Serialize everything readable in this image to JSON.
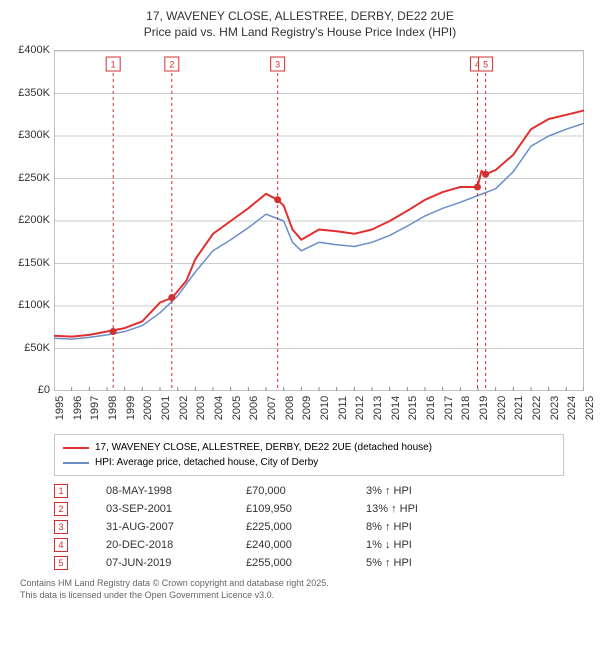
{
  "title_line1": "17, WAVENEY CLOSE, ALLESTREE, DERBY, DE22 2UE",
  "title_line2": "Price paid vs. HM Land Registry's House Price Index (HPI)",
  "chart": {
    "type": "line",
    "background_color": "#ffffff",
    "plot_border_color": "#bbbbbb",
    "grid_color": "#cccccc",
    "x": {
      "min": 1995,
      "max": 2025,
      "step": 1,
      "labels": [
        "1995",
        "1996",
        "1997",
        "1998",
        "1999",
        "2000",
        "2001",
        "2002",
        "2003",
        "2004",
        "2005",
        "2006",
        "2007",
        "2008",
        "2009",
        "2010",
        "2011",
        "2012",
        "2013",
        "2014",
        "2015",
        "2016",
        "2017",
        "2018",
        "2019",
        "2020",
        "2021",
        "2022",
        "2023",
        "2024",
        "2025"
      ],
      "label_fontsize": 11,
      "label_rotation": -90
    },
    "y": {
      "min": 0,
      "max": 400000,
      "step": 50000,
      "labels": [
        "£0",
        "£50K",
        "£100K",
        "£150K",
        "£200K",
        "£250K",
        "£300K",
        "£350K",
        "£400K"
      ],
      "label_fontsize": 11
    },
    "series": [
      {
        "name": "17, WAVENEY CLOSE, ALLESTREE, DERBY, DE22 2UE (detached house)",
        "color": "#e03030",
        "line_width": 2,
        "data": [
          [
            1995,
            65000
          ],
          [
            1996,
            64000
          ],
          [
            1997,
            66000
          ],
          [
            1998,
            70000
          ],
          [
            1999,
            74000
          ],
          [
            2000,
            82000
          ],
          [
            2001,
            104000
          ],
          [
            2001.7,
            109950
          ],
          [
            2002.5,
            130000
          ],
          [
            2003,
            155000
          ],
          [
            2004,
            185000
          ],
          [
            2005,
            200000
          ],
          [
            2006,
            215000
          ],
          [
            2007,
            232000
          ],
          [
            2007.66,
            225000
          ],
          [
            2008,
            218000
          ],
          [
            2008.5,
            190000
          ],
          [
            2009,
            178000
          ],
          [
            2010,
            190000
          ],
          [
            2011,
            188000
          ],
          [
            2012,
            185000
          ],
          [
            2013,
            190000
          ],
          [
            2014,
            200000
          ],
          [
            2015,
            212000
          ],
          [
            2016,
            225000
          ],
          [
            2017,
            234000
          ],
          [
            2018,
            240000
          ],
          [
            2018.97,
            240000
          ],
          [
            2019.2,
            259000
          ],
          [
            2019.43,
            255000
          ],
          [
            2020,
            260000
          ],
          [
            2021,
            278000
          ],
          [
            2022,
            308000
          ],
          [
            2023,
            320000
          ],
          [
            2024,
            325000
          ],
          [
            2025,
            330000
          ]
        ]
      },
      {
        "name": "HPI: Average price, detached house, City of Derby",
        "color": "#6a8fc8",
        "line_width": 1.5,
        "data": [
          [
            1995,
            62000
          ],
          [
            1996,
            61000
          ],
          [
            1997,
            63000
          ],
          [
            1998,
            66000
          ],
          [
            1999,
            70000
          ],
          [
            2000,
            77000
          ],
          [
            2001,
            92000
          ],
          [
            2002,
            112000
          ],
          [
            2003,
            140000
          ],
          [
            2004,
            165000
          ],
          [
            2005,
            178000
          ],
          [
            2006,
            192000
          ],
          [
            2007,
            208000
          ],
          [
            2008,
            200000
          ],
          [
            2008.5,
            175000
          ],
          [
            2009,
            165000
          ],
          [
            2010,
            175000
          ],
          [
            2011,
            172000
          ],
          [
            2012,
            170000
          ],
          [
            2013,
            175000
          ],
          [
            2014,
            183000
          ],
          [
            2015,
            194000
          ],
          [
            2016,
            206000
          ],
          [
            2017,
            215000
          ],
          [
            2018,
            222000
          ],
          [
            2019,
            230000
          ],
          [
            2020,
            238000
          ],
          [
            2021,
            258000
          ],
          [
            2022,
            288000
          ],
          [
            2023,
            300000
          ],
          [
            2024,
            308000
          ],
          [
            2025,
            315000
          ]
        ]
      }
    ],
    "markers": {
      "color": "#d03030",
      "box_fontsize": 9,
      "line_dash": "3,3",
      "items": [
        {
          "n": "1",
          "x": 1998.35,
          "y": 70000
        },
        {
          "n": "2",
          "x": 2001.67,
          "y": 109950
        },
        {
          "n": "3",
          "x": 2007.66,
          "y": 225000
        },
        {
          "n": "4",
          "x": 2018.97,
          "y": 240000
        },
        {
          "n": "5",
          "x": 2019.43,
          "y": 255000
        }
      ]
    }
  },
  "legend": {
    "border_color": "#c8c8c8",
    "fontsize": 10,
    "items": [
      {
        "color": "#e03030",
        "label": "17, WAVENEY CLOSE, ALLESTREE, DERBY, DE22 2UE (detached house)"
      },
      {
        "color": "#6a8fc8",
        "label": "HPI: Average price, detached house, City of Derby"
      }
    ]
  },
  "events": {
    "fontsize": 11,
    "box_color": "#d03030",
    "rows": [
      {
        "n": "1",
        "date": "08-MAY-1998",
        "price": "£70,000",
        "pct": "3%",
        "arrow": "↑",
        "hpi": "HPI"
      },
      {
        "n": "2",
        "date": "03-SEP-2001",
        "price": "£109,950",
        "pct": "13%",
        "arrow": "↑",
        "hpi": "HPI"
      },
      {
        "n": "3",
        "date": "31-AUG-2007",
        "price": "£225,000",
        "pct": "8%",
        "arrow": "↑",
        "hpi": "HPI"
      },
      {
        "n": "4",
        "date": "20-DEC-2018",
        "price": "£240,000",
        "pct": "1%",
        "arrow": "↓",
        "hpi": "HPI"
      },
      {
        "n": "5",
        "date": "07-JUN-2019",
        "price": "£255,000",
        "pct": "5%",
        "arrow": "↑",
        "hpi": "HPI"
      }
    ]
  },
  "footer_line1": "Contains HM Land Registry data © Crown copyright and database right 2025.",
  "footer_line2": "This data is licensed under the Open Government Licence v3.0."
}
